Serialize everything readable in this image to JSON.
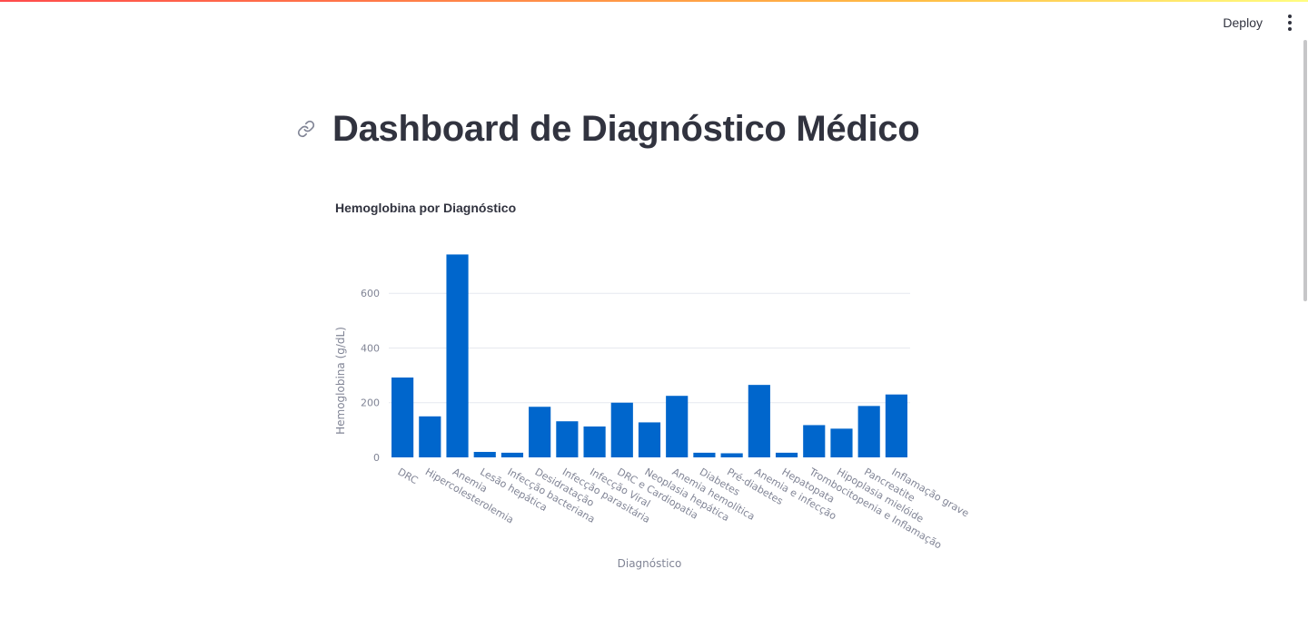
{
  "header": {
    "deploy_label": "Deploy",
    "menu_icon": "more-vertical-icon"
  },
  "page": {
    "title": "Dashboard de Diagnóstico Médico",
    "title_link_icon": "link-icon"
  },
  "colors": {
    "bar": "#0066cc",
    "grid": "#e6e9ef",
    "text": "#31333f",
    "muted": "#808495"
  },
  "chart_data": {
    "type": "bar",
    "title": "Hemoglobina por Diagnóstico",
    "xlabel": "Diagnóstico",
    "ylabel": "Hemoglobina (g/dL)",
    "ylim": [
      0,
      760
    ],
    "yticks": [
      0,
      200,
      400,
      600
    ],
    "grid": true,
    "categories": [
      "DRC",
      "Hipercolesterolemia",
      "Anemia",
      "Lesão hepática",
      "Infecção bacteriana",
      "Desidratação",
      "Infecção parasitária",
      "Infecção Viral",
      "DRC e Cardiopatia",
      "Neoplasia hepática",
      "Anemia hemolítica",
      "Diabetes",
      "Pré-diabetes",
      "Anemia e infecção",
      "Hepatopata",
      "Trombocitopenia e Inflamação",
      "Hipoplasia mielóide",
      "Pancreatite",
      "Inflamação grave"
    ],
    "values": [
      292,
      150,
      742,
      20,
      17,
      185,
      132,
      113,
      200,
      128,
      225,
      17,
      15,
      265,
      17,
      118,
      105,
      188,
      230
    ]
  }
}
